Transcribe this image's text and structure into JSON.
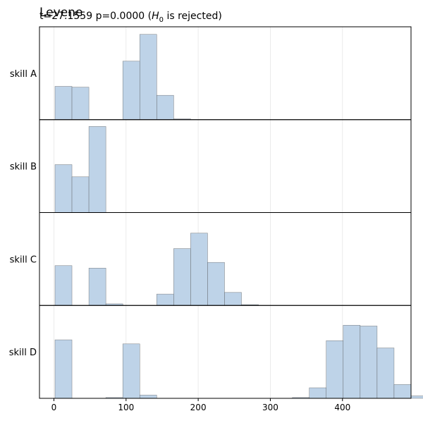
{
  "chart_data": {
    "type": "histogram",
    "title": "Levene",
    "subtitle": {
      "prefix": "t=27.1559 p=0.0000 (",
      "h": "H",
      "h_sub": "0",
      "suffix": " is rejected)"
    },
    "xlim": [
      -20,
      495
    ],
    "xticks": [
      0,
      100,
      200,
      300,
      400
    ],
    "bin_width": 23.5,
    "bin_start": 1.5,
    "bar_color": "#bed3e8",
    "bar_edge": "#4a4a4a",
    "grid": true,
    "panels": [
      {
        "name": "skill A",
        "ymax": 110,
        "counts": [
          41,
          40,
          0,
          0,
          72,
          105,
          30,
          1
        ]
      },
      {
        "name": "skill B",
        "ymax": 110,
        "counts": [
          59,
          44,
          106
        ]
      },
      {
        "name": "skill C",
        "ymax": 110,
        "counts": [
          49,
          0,
          46,
          2,
          0,
          0,
          14,
          70,
          89,
          53,
          16,
          1
        ]
      },
      {
        "name": "skill D",
        "ymax": 110,
        "counts": [
          72,
          0,
          0,
          1,
          67,
          4,
          0,
          0,
          0,
          0,
          0,
          0,
          0,
          0,
          1,
          13,
          71,
          90,
          89,
          62,
          17,
          3,
          2
        ]
      }
    ]
  }
}
